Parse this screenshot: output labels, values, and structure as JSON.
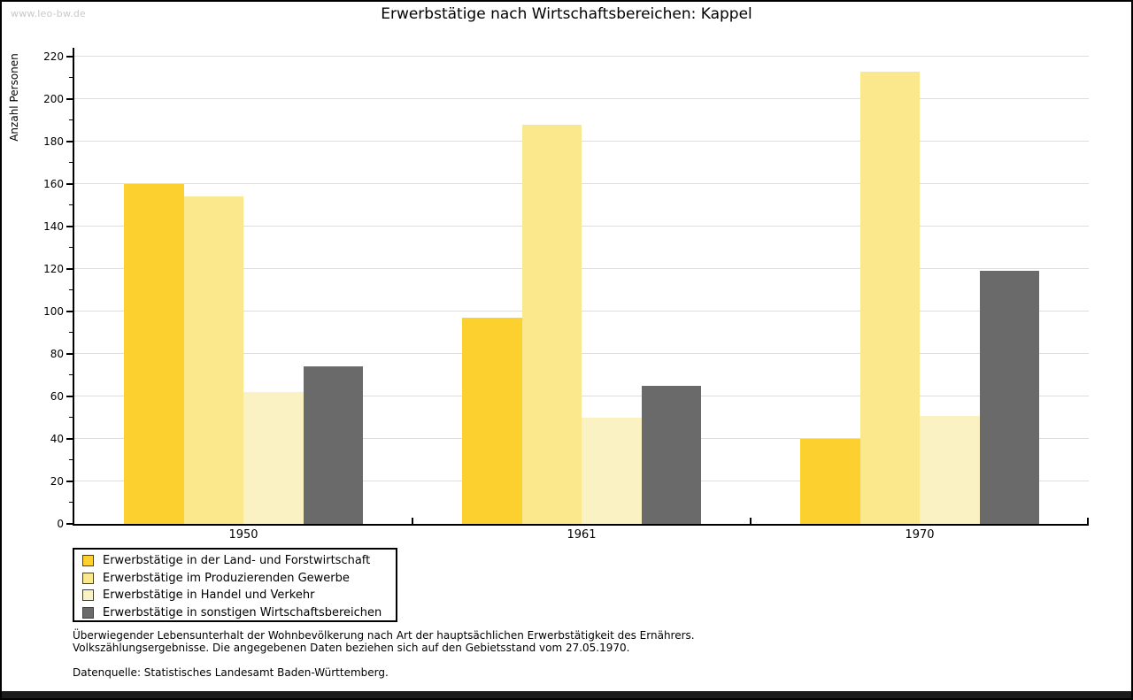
{
  "watermark": "www.leo-bw.de",
  "title": "Erwerbstätige nach Wirtschaftsbereichen: Kappel",
  "chart_data": {
    "type": "bar",
    "title": "Erwerbstätige nach Wirtschaftsbereichen: Kappel",
    "categories": [
      "1950",
      "1961",
      "1970"
    ],
    "series": [
      {
        "name": "Erwerbstätige in der Land- und Forstwirtschaft",
        "color": "#FCD12F",
        "values": [
          160,
          97,
          40
        ]
      },
      {
        "name": "Erwerbstätige im Produzierenden Gewerbe",
        "color": "#FBE78C",
        "values": [
          154,
          188,
          213
        ]
      },
      {
        "name": "Erwerbstätige in Handel und Verkehr",
        "color": "#FBF2C4",
        "values": [
          62,
          50,
          51
        ]
      },
      {
        "name": "Erwerbstätige in sonstigen Wirtschaftsbereichen",
        "color": "#6A6A6A",
        "values": [
          74,
          65,
          119
        ]
      }
    ],
    "xlabel": "",
    "ylabel": "Anzahl Personen",
    "ylim": [
      0,
      220
    ],
    "ytick_step": 20,
    "ytick_minor_step": 10,
    "grid": true,
    "gridline_color": "#dedede",
    "legend_position": "bottom-left"
  },
  "footer": {
    "line1": "Überwiegender Lebensunterhalt der Wohnbevölkerung nach Art der hauptsächlichen Erwerbstätigkeit des Ernährers.",
    "line2": "Volkszählungsergebnisse. Die angegebenen Daten beziehen sich auf den Gebietsstand vom 27.05.1970.",
    "source": "Datenquelle: Statistisches Landesamt Baden-Württemberg."
  }
}
